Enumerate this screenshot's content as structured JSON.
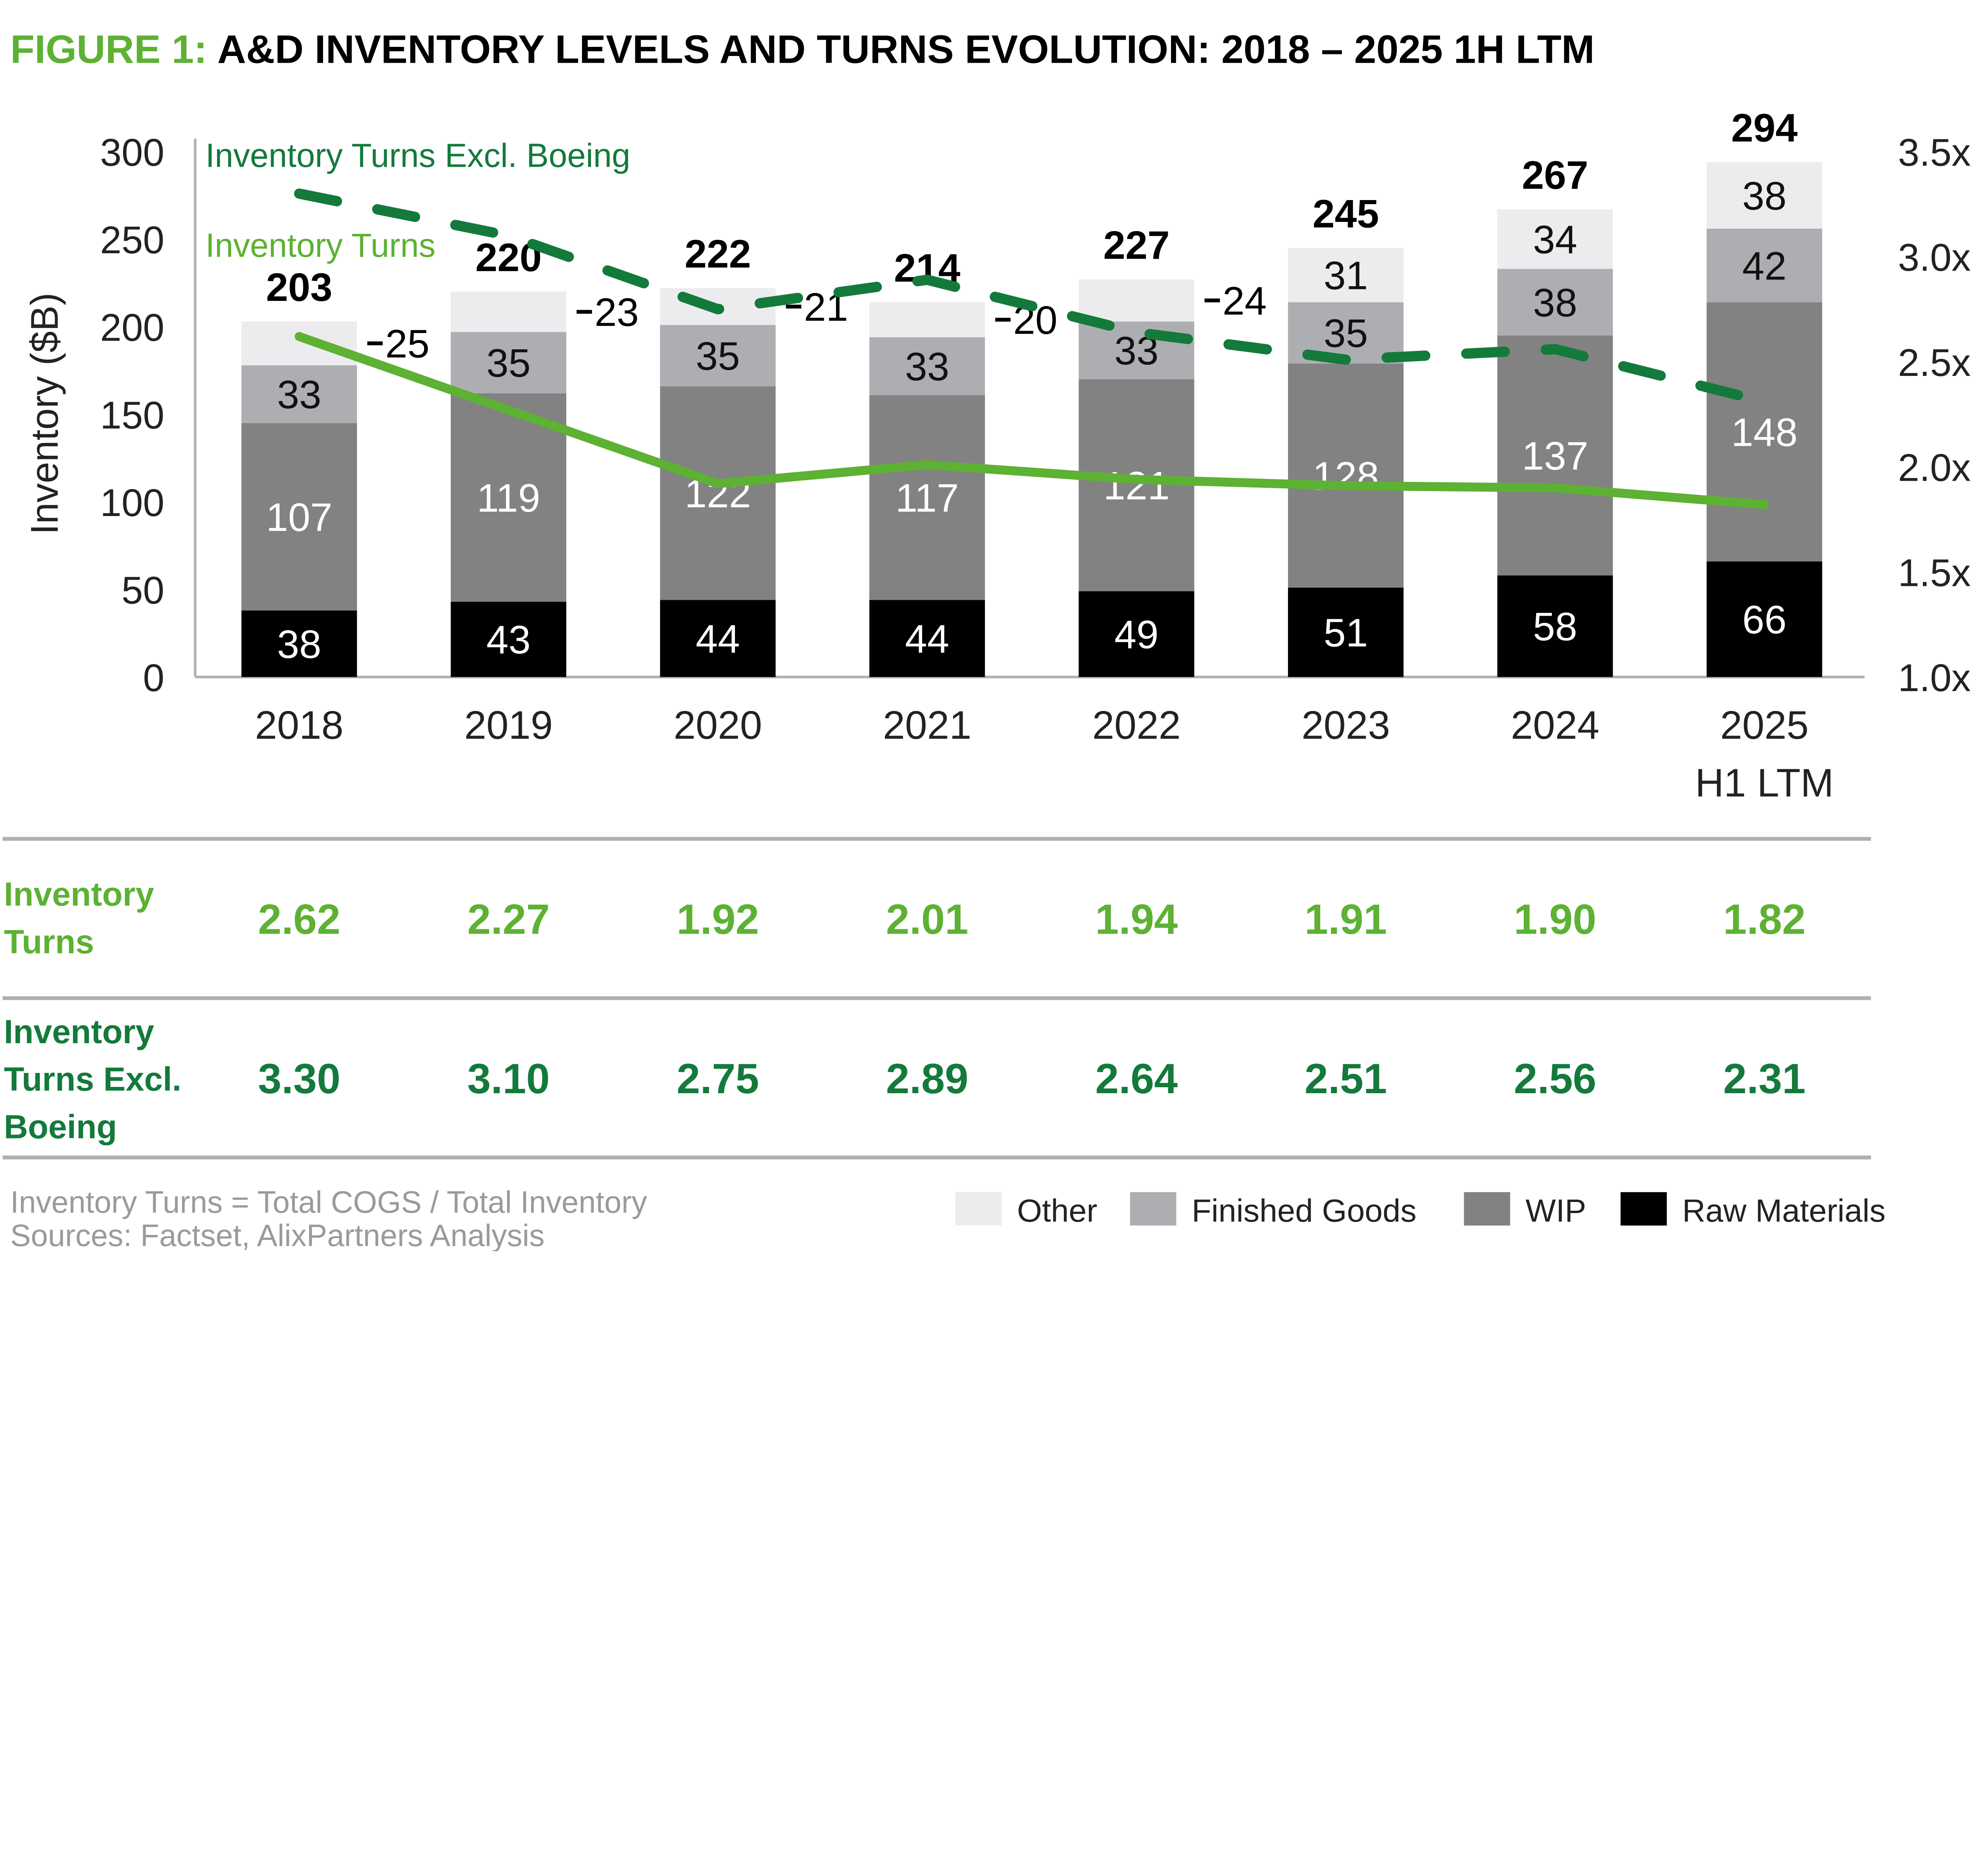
{
  "title": {
    "prefix": "FIGURE 1:",
    "text": "A&D INVENTORY LEVELS AND TURNS EVOLUTION: 2018 – 2025 1H LTM"
  },
  "chart_data": {
    "type": "bar",
    "stacked": true,
    "categories": [
      "2018",
      "2019",
      "2020",
      "2021",
      "2022",
      "2023",
      "2024",
      "2025\nH1 LTM"
    ],
    "ylabel": "Inventory ($B)",
    "ylim": [
      0,
      300
    ],
    "yticks": [
      "0",
      "50",
      "100",
      "150",
      "200",
      "250",
      "300"
    ],
    "y2lim": [
      1.0,
      3.5
    ],
    "y2ticks": [
      "1.0x",
      "1.5x",
      "2.0x",
      "2.5x",
      "3.0x",
      "3.5x"
    ],
    "series": [
      {
        "name": "Raw Materials",
        "color": "#000000",
        "values": [
          38,
          43,
          44,
          44,
          49,
          51,
          58,
          66
        ]
      },
      {
        "name": "WIP",
        "color": "#828282",
        "values": [
          107,
          119,
          122,
          117,
          121,
          128,
          137,
          148
        ]
      },
      {
        "name": "Finished Goods",
        "color": "#adaeb1",
        "values": [
          33,
          35,
          35,
          33,
          33,
          35,
          38,
          42
        ]
      },
      {
        "name": "Other",
        "color": "#ececee",
        "values": [
          25,
          23,
          21,
          20,
          24,
          31,
          34,
          38
        ]
      }
    ],
    "totals": [
      203,
      220,
      222,
      214,
      227,
      245,
      267,
      294
    ],
    "lines": [
      {
        "name": "Inventory Turns",
        "color": "#5db133",
        "style": "solid",
        "axis": "right",
        "values": [
          2.62,
          2.27,
          1.92,
          2.01,
          1.94,
          1.91,
          1.9,
          1.82
        ]
      },
      {
        "name": "Inventory Turns Excl. Boeing",
        "color": "#137a3b",
        "style": "dashed",
        "axis": "right",
        "values": [
          3.3,
          3.1,
          2.75,
          2.89,
          2.64,
          2.51,
          2.56,
          2.31
        ]
      }
    ],
    "legend_placement": "bottom-right",
    "grid": false
  },
  "table": {
    "rows": [
      {
        "label": "Inventory\nTurns",
        "color": "#5db133",
        "values": [
          "2.62",
          "2.27",
          "1.92",
          "2.01",
          "1.94",
          "1.91",
          "1.90",
          "1.82"
        ]
      },
      {
        "label": "Inventory\nTurns Excl.\nBoeing",
        "color": "#137a3b",
        "values": [
          "3.30",
          "3.10",
          "2.75",
          "2.89",
          "2.64",
          "2.51",
          "2.56",
          "2.31"
        ]
      }
    ]
  },
  "legend": [
    "Other",
    "Finished Goods",
    "WIP",
    "Raw Materials"
  ],
  "footnotes": [
    "Inventory Turns = Total COGS / Total Inventory",
    "Sources: Factset, AlixPartners Analysis"
  ]
}
